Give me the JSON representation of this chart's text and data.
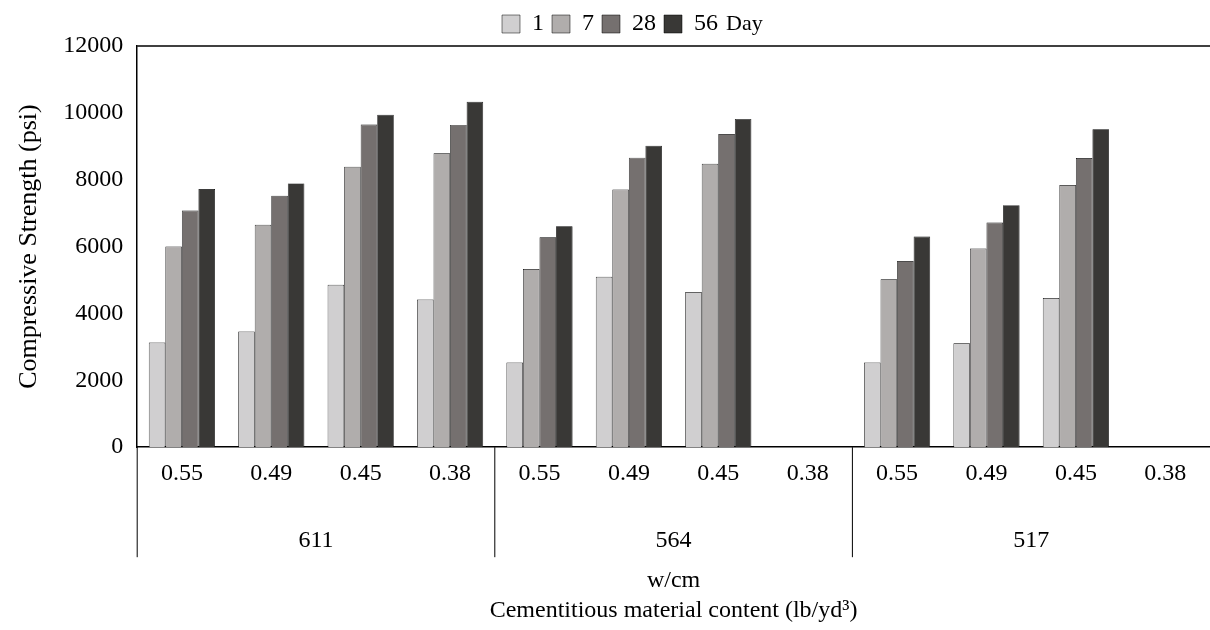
{
  "chart_data": {
    "type": "bar",
    "categories": [
      "0.55",
      "0.49",
      "0.45",
      "0.38",
      "0.55",
      "0.49",
      "0.45",
      "0.38",
      "0.55",
      "0.49",
      "0.45",
      "0.38"
    ],
    "series": [
      {
        "name": "1",
        "color": "#d0cfd0",
        "values": [
          3130,
          3460,
          4860,
          4420,
          2530,
          5100,
          4640,
          null,
          2530,
          3110,
          4460,
          null
        ]
      },
      {
        "name": "7",
        "color": "#b0adac",
        "values": [
          6000,
          6650,
          8390,
          8790,
          5330,
          7710,
          8480,
          null,
          5020,
          5940,
          7840,
          null
        ]
      },
      {
        "name": "28",
        "color": "#75706f",
        "values": [
          7080,
          7520,
          9650,
          9640,
          6280,
          8660,
          9370,
          null,
          5570,
          6720,
          8650,
          null
        ]
      },
      {
        "name": "56",
        "color": "#393836",
        "values": [
          7720,
          7890,
          9940,
          10330,
          6610,
          9020,
          9820,
          null,
          6300,
          7240,
          9510,
          null
        ]
      }
    ],
    "legend_title": "Day",
    "legend": "top",
    "xlabel": "w/cm\nCementitious material content (lb/yd³)",
    "ylabel": "Compressive Strength (psi)",
    "annotations": [
      "611",
      "564",
      "517"
    ],
    "ylim": [
      0,
      12000
    ],
    "yticks": [
      0,
      2000,
      4000,
      6000,
      8000,
      10000,
      12000
    ],
    "grid": false
  }
}
